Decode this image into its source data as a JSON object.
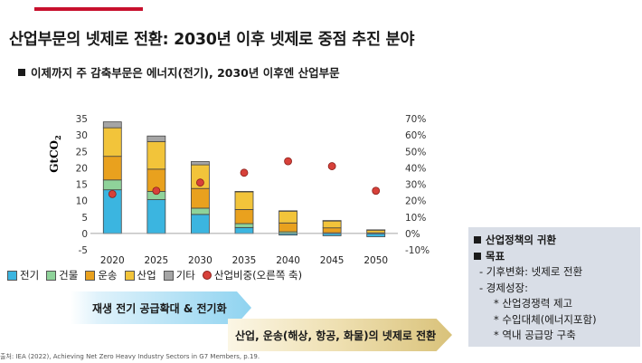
{
  "title": "산업부문의 넷제로 전환: 2030년 이후 넷제로 중점 추진 분야",
  "subheading": "이제까지 주 감축부문은 에너지(전기), 2030년 이후엔 산업부문",
  "chart_data": {
    "type": "bar",
    "stacked": true,
    "categories": [
      "2020",
      "2025",
      "2030",
      "2035",
      "2040",
      "2045",
      "2050"
    ],
    "ylabel": "GtCO",
    "ylabel_sub": "2",
    "ylim": [
      -5,
      35
    ],
    "y_ticks": [
      "35",
      "30",
      "25",
      "20",
      "15",
      "10",
      "5",
      "0",
      "-5"
    ],
    "y2lim": [
      -0.1,
      0.7
    ],
    "y2_ticks": [
      "70%",
      "60%",
      "50%",
      "40%",
      "30%",
      "20%",
      "10%",
      "0%",
      "-10%"
    ],
    "series": [
      {
        "name": "전기",
        "color": "#3bb5e0",
        "values": [
          13.3,
          10.3,
          5.8,
          1.8,
          -0.5,
          -0.7,
          -1.0
        ]
      },
      {
        "name": "건물",
        "color": "#8fd39a",
        "values": [
          3.0,
          2.5,
          1.9,
          1.2,
          0.5,
          0.2,
          0.0
        ]
      },
      {
        "name": "운송",
        "color": "#e9a11e",
        "values": [
          7.2,
          6.8,
          6.0,
          4.3,
          2.7,
          1.5,
          0.2
        ]
      },
      {
        "name": "산업",
        "color": "#f2c43a",
        "values": [
          8.7,
          8.4,
          7.2,
          5.4,
          3.6,
          2.2,
          0.9
        ]
      },
      {
        "name": "기타",
        "color": "#a5a5a5",
        "values": [
          1.8,
          1.7,
          1.0,
          0.1,
          0.1,
          0.0,
          0.0
        ]
      }
    ],
    "line_series": {
      "name": "산업비중(오른쪽 축)",
      "color": "#d7413a",
      "values": [
        0.24,
        0.26,
        0.31,
        0.37,
        0.44,
        0.41,
        0.26
      ]
    },
    "legend": [
      "전기",
      "건물",
      "운송",
      "산업",
      "기타",
      "산업비중(오른쪽 축)"
    ],
    "grid": false
  },
  "arrows": {
    "first": "재생 전기 공급확대 & 전기화",
    "second": "산업, 운송(해상, 항공, 화물)의 넷제로 전환"
  },
  "policy": {
    "heading1": "산업정책의 귀환",
    "heading2": "목표",
    "items": [
      "-  기후변화: 넷제로 전환",
      "-  경제성장:",
      "*  산업경쟁력 제고",
      "*  수입대체(에너지포함)",
      "*  역내 공급망 구축"
    ]
  },
  "source": "출처: IEA (2022), Achieving Net Zero Heavy Industry Sectors in G7 Members, p.19."
}
